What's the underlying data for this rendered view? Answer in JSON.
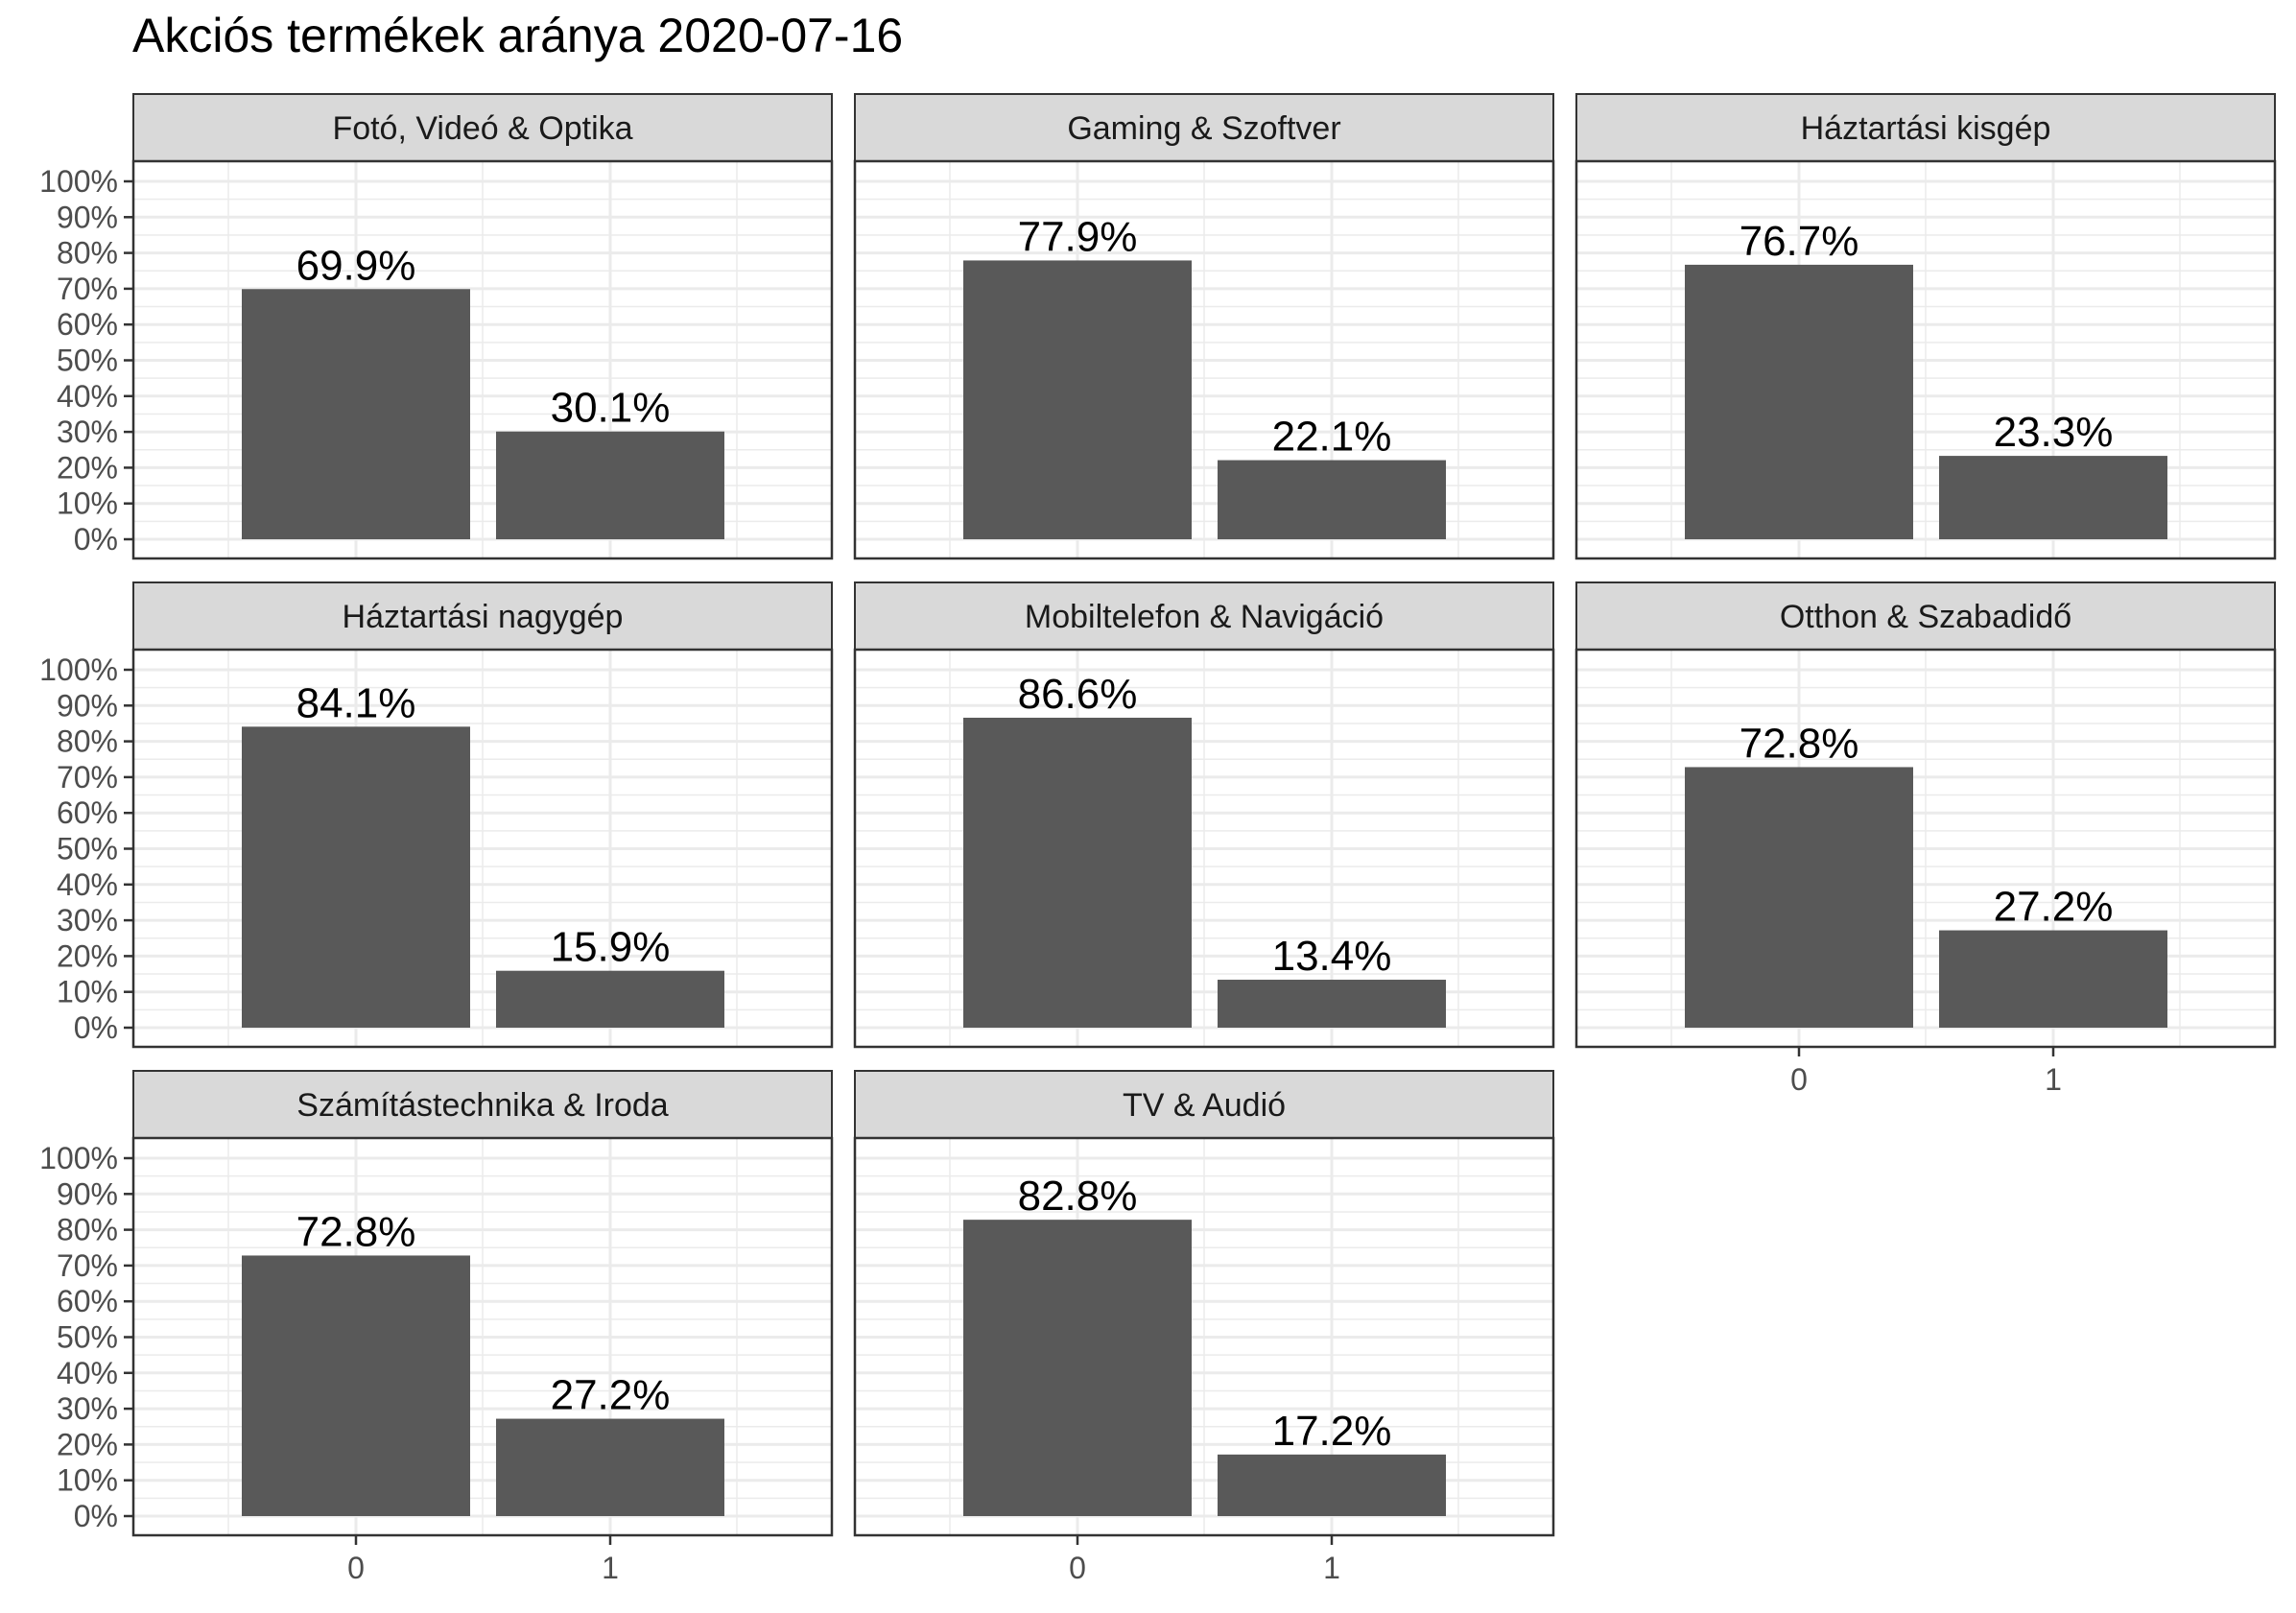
{
  "chart_data": {
    "type": "bar",
    "title": "Akciós termékek aránya 2020-07-16",
    "xlabel": "",
    "ylabel": "",
    "ylim": [
      0,
      1
    ],
    "grid": true,
    "categories": [
      "0",
      "1"
    ],
    "y_ticks": [
      "0%",
      "10%",
      "20%",
      "30%",
      "40%",
      "50%",
      "60%",
      "70%",
      "80%",
      "90%",
      "100%"
    ],
    "bar_color": "#595959",
    "strip_color": "#d9d9d9",
    "grid_color": "#ebebeb",
    "panels": [
      {
        "title": "Fotó, Videó & Optika",
        "values": [
          0.699,
          0.301
        ],
        "labels": [
          "69.9%",
          "30.1%"
        ]
      },
      {
        "title": "Gaming & Szoftver",
        "values": [
          0.779,
          0.221
        ],
        "labels": [
          "77.9%",
          "22.1%"
        ]
      },
      {
        "title": "Háztartási kisgép",
        "values": [
          0.767,
          0.233
        ],
        "labels": [
          "76.7%",
          "23.3%"
        ]
      },
      {
        "title": "Háztartási nagygép",
        "values": [
          0.841,
          0.159
        ],
        "labels": [
          "84.1%",
          "15.9%"
        ]
      },
      {
        "title": "Mobiltelefon & Navigáció",
        "values": [
          0.866,
          0.134
        ],
        "labels": [
          "86.6%",
          "13.4%"
        ]
      },
      {
        "title": "Otthon & Szabadidő",
        "values": [
          0.728,
          0.272
        ],
        "labels": [
          "72.8%",
          "27.2%"
        ]
      },
      {
        "title": "Számítástechnika & Iroda",
        "values": [
          0.728,
          0.272
        ],
        "labels": [
          "72.8%",
          "27.2%"
        ]
      },
      {
        "title": "TV & Audió",
        "values": [
          0.828,
          0.172
        ],
        "labels": [
          "82.8%",
          "17.2%"
        ]
      }
    ]
  }
}
